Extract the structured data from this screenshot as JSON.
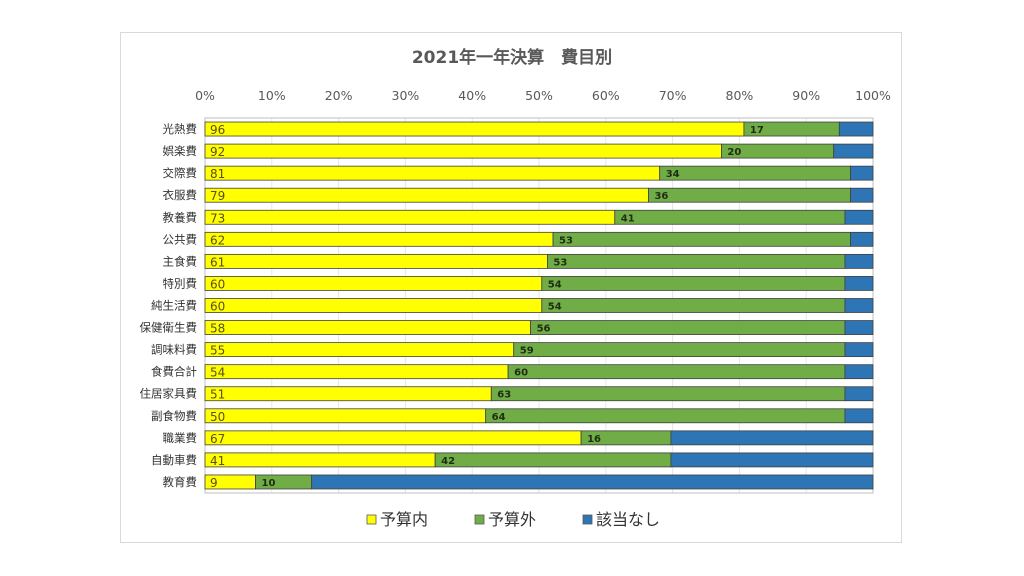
{
  "chart_data": {
    "type": "bar",
    "orientation": "horizontal",
    "stacked": "percent",
    "title": "2021年一年決算　費目別",
    "xlabel": "",
    "ylabel": "",
    "xlim": [
      0,
      100
    ],
    "x_tick_labels": [
      "0%",
      "10%",
      "20%",
      "30%",
      "40%",
      "50%",
      "60%",
      "70%",
      "80%",
      "90%",
      "100%"
    ],
    "grid": true,
    "legend_position": "bottom",
    "categories": [
      "光熱費",
      "娯楽費",
      "交際費",
      "衣服費",
      "教養費",
      "公共費",
      "主食費",
      "特別費",
      "純生活費",
      "保健衛生費",
      "調味料費",
      "食費合計",
      "住居家具費",
      "副食物費",
      "職業費",
      "自動車費",
      "教育費"
    ],
    "series": [
      {
        "name": "予算内",
        "color": "#ffff00",
        "values": [
          96,
          92,
          81,
          79,
          73,
          62,
          61,
          60,
          60,
          58,
          55,
          54,
          51,
          50,
          67,
          41,
          9
        ],
        "labels_shown": true
      },
      {
        "name": "予算外",
        "color": "#70ad47",
        "values": [
          17,
          20,
          34,
          36,
          41,
          53,
          53,
          54,
          54,
          56,
          59,
          60,
          63,
          64,
          16,
          42,
          10
        ],
        "labels_shown": true
      },
      {
        "name": "該当なし",
        "color": "#2e75b6",
        "values": [
          6,
          7,
          4,
          4,
          5,
          4,
          5,
          5,
          5,
          5,
          5,
          5,
          5,
          5,
          36,
          36,
          100
        ],
        "labels_shown": false
      }
    ]
  }
}
